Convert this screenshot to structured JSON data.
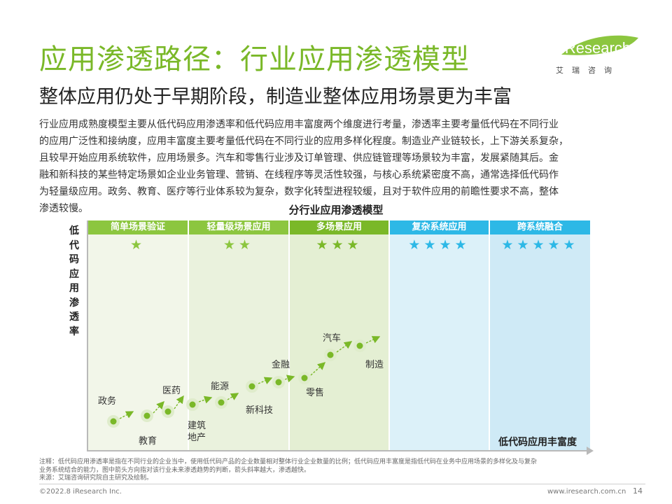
{
  "header": {
    "title": "应用渗透路径：行业应用渗透模型",
    "subtitle": "整体应用仍处于早期阶段，制造业整体应用场景更为丰富"
  },
  "logo": {
    "name": "iResearch",
    "sub": "艾瑞咨询"
  },
  "body_lines": [
    "行业应用成熟度模型主要从低代码应用渗透率和低代码应用丰富度两个维度进行考量，渗透率主要考量低代码在不同行业",
    "的应用广泛性和接纳度，应用丰富度主要考量低代码在不同行业的应用多样化程度。制造业产业链较长，上下游关系复杂，",
    "且较早开始应用系统软件，应用场景多。汽车和零售行业涉及订单管理、供应链管理等场景较为丰富，发展紧随其后。金",
    "融和新科技的某些特定场景如企业业务管理、营销、在线程序等灵活性较强，与核心系统紧密度不高，通常选择低代码作",
    "为轻量级应用。政务、教育、医疗等行业体系较为复杂，数字化转型进程较缓，且对于软件应用的前瞻性要求不高，整体",
    "渗透较慢。"
  ],
  "diagram": {
    "title": "分行业应用渗透模型",
    "y_axis_label": "低代码应用渗透率",
    "x_axis_label": "低代码应用丰富度",
    "stages": [
      {
        "label": "简单场景验证",
        "stars": "★",
        "header_color": "#8cc63f",
        "bg_color": "#f2f6e9"
      },
      {
        "label": "轻量级场景应用",
        "stars": "★★",
        "header_color": "#8cc63f",
        "bg_color": "#eaf2dd"
      },
      {
        "label": "多场景应用",
        "stars": "★★★",
        "header_color": "#7ab828",
        "bg_color": "#e4efd3"
      },
      {
        "label": "复杂系统应用",
        "stars": "★★★★",
        "header_color": "#2db8e6",
        "bg_color": "#dcf1f9"
      },
      {
        "label": "跨系统融合",
        "stars": "★★★★★",
        "header_color": "#2db8e6",
        "bg_color": "#cfeaf6"
      }
    ],
    "industries": [
      {
        "name": "政务"
      },
      {
        "name": "教育"
      },
      {
        "name": "医药"
      },
      {
        "name": "建筑地产"
      },
      {
        "name": "能源"
      },
      {
        "name": "新科技"
      },
      {
        "name": "金融"
      },
      {
        "name": "零售"
      },
      {
        "name": "汽车"
      },
      {
        "name": "制造"
      }
    ]
  },
  "footer": {
    "note_lines": [
      "注释：低代码应用渗透率是指在不同行业的企业当中，使用低代码产品的企业数量相对整体行业企业数量的比例；低代码应用丰富度是指低代码在业务中应用场景的多样化及与复杂",
      "业务系统结合的能力，图中箭头方向指对该行业未来渗透趋势的判断，箭头斜率越大，渗透越快。",
      "来源：艾瑞咨询研究院自主研究及绘制。"
    ],
    "copyright": "©2022.8 iResearch Inc.",
    "website": "www.iresearch.com.cn",
    "page": "14"
  },
  "colors": {
    "accent_green": "#7ab828",
    "accent_blue": "#2db8e6"
  }
}
